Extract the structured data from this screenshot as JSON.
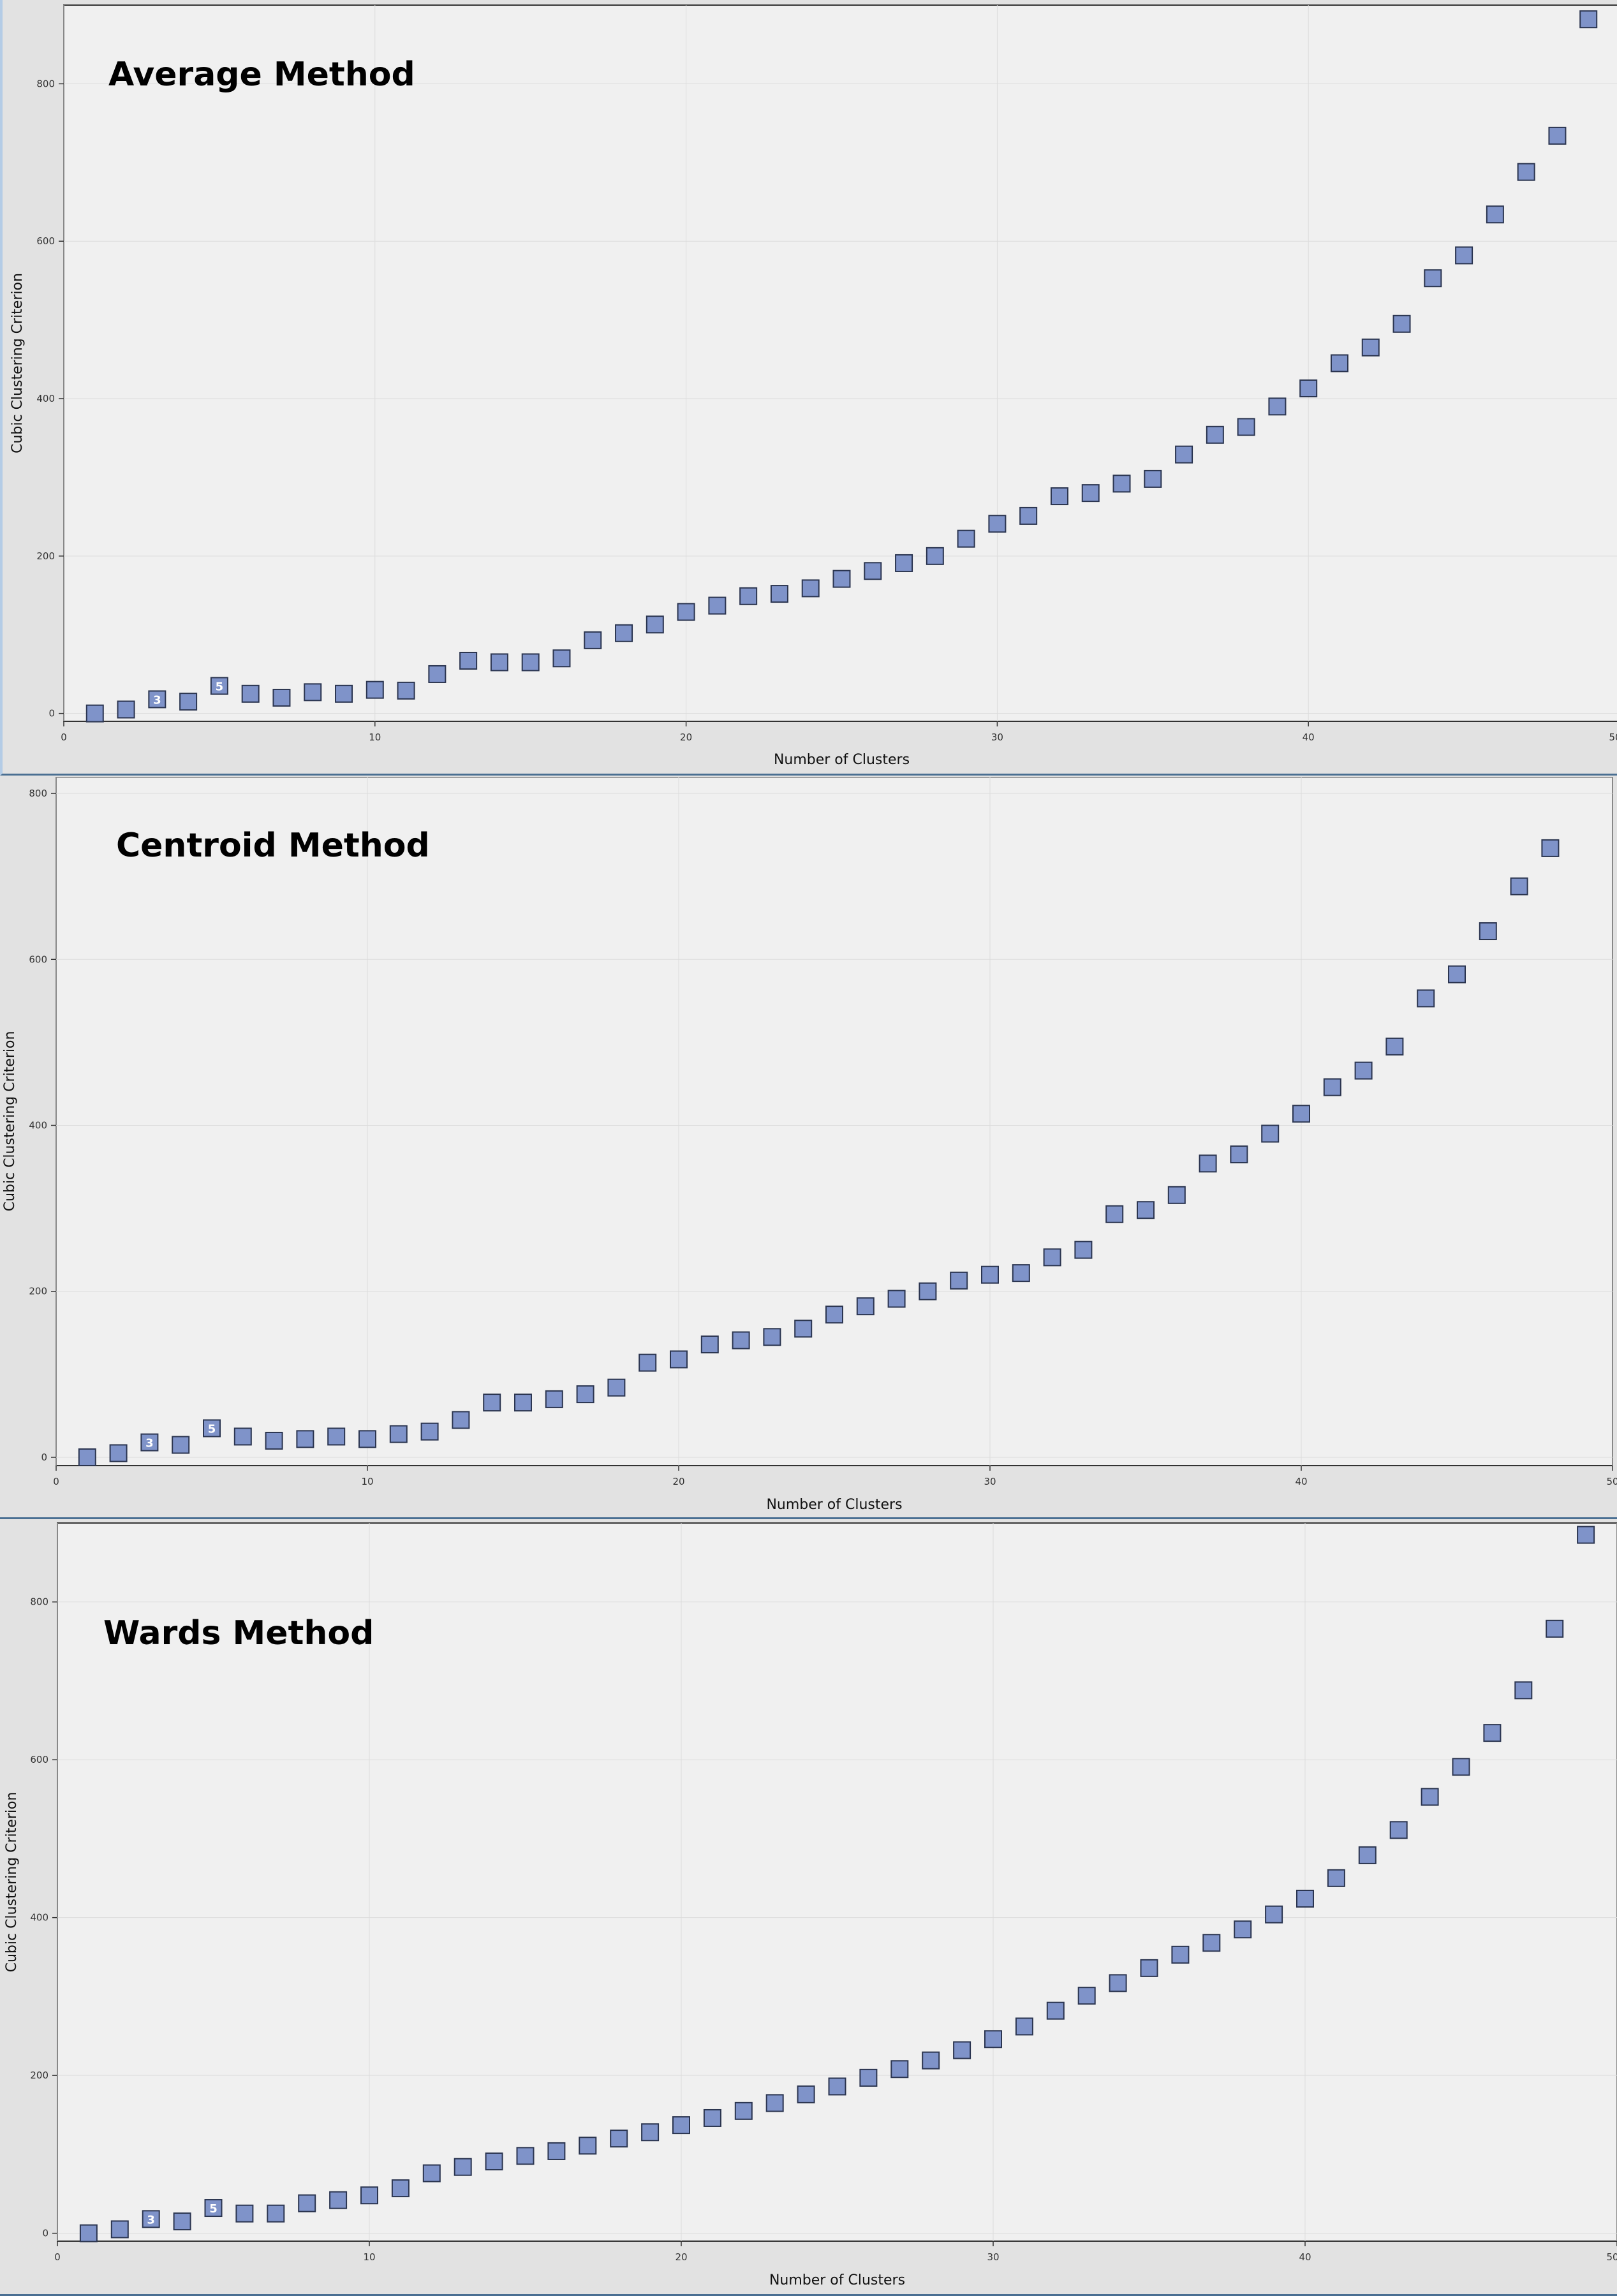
{
  "colors": {
    "panel_bg": "#e2e2e2",
    "plot_bg": "#f0f0f0",
    "grid": "#dcdcdc",
    "marker_fill": "#7f93c9",
    "marker_stroke": "#2b3550",
    "axis": "#333333"
  },
  "chart_data": [
    {
      "type": "scatter",
      "title": "Average Method",
      "xlabel": "Number of Clusters",
      "ylabel": "Cubic Clustering Criterion",
      "xlim": [
        0,
        50
      ],
      "ylim": [
        -10,
        900
      ],
      "xticks": [
        0,
        10,
        20,
        30,
        40,
        50
      ],
      "yticks": [
        0,
        200,
        400,
        600,
        800
      ],
      "grid": true,
      "marker": "square",
      "labeled_points": {
        "3": "3",
        "5": "5"
      },
      "x": [
        1,
        2,
        3,
        4,
        5,
        6,
        7,
        8,
        9,
        10,
        11,
        12,
        13,
        14,
        15,
        16,
        17,
        18,
        19,
        20,
        21,
        22,
        23,
        24,
        25,
        26,
        27,
        28,
        29,
        30,
        31,
        32,
        33,
        34,
        35,
        36,
        37,
        38,
        39,
        40,
        41,
        42,
        43,
        44,
        45,
        46,
        47,
        48,
        49
      ],
      "y": [
        0,
        5,
        18,
        15,
        35,
        25,
        20,
        27,
        25,
        30,
        29,
        50,
        67,
        65,
        65,
        70,
        93,
        102,
        113,
        129,
        137,
        149,
        152,
        159,
        171,
        181,
        191,
        200,
        222,
        241,
        251,
        276,
        280,
        292,
        298,
        329,
        354,
        364,
        390,
        413,
        445,
        465,
        495,
        553,
        582,
        634,
        688,
        734,
        882
      ]
    },
    {
      "type": "scatter",
      "title": "Centroid Method",
      "xlabel": "Number of Clusters",
      "ylabel": "Cubic Clustering Criterion",
      "xlim": [
        0,
        50
      ],
      "ylim": [
        -10,
        820
      ],
      "xticks": [
        0,
        10,
        20,
        30,
        40,
        50
      ],
      "yticks": [
        0,
        200,
        400,
        600,
        800
      ],
      "grid": true,
      "marker": "square",
      "labeled_points": {
        "3": "3",
        "5": "5"
      },
      "x": [
        1,
        2,
        3,
        4,
        5,
        6,
        7,
        8,
        9,
        10,
        11,
        12,
        13,
        14,
        15,
        16,
        17,
        18,
        19,
        20,
        21,
        22,
        23,
        24,
        25,
        26,
        27,
        28,
        29,
        30,
        31,
        32,
        33,
        34,
        35,
        36,
        37,
        38,
        39,
        40,
        41,
        42,
        43,
        44,
        45,
        46,
        47,
        48
      ],
      "y": [
        0,
        5,
        18,
        15,
        35,
        25,
        20,
        22,
        25,
        22,
        28,
        31,
        45,
        66,
        66,
        70,
        76,
        84,
        114,
        118,
        136,
        141,
        145,
        155,
        172,
        182,
        191,
        200,
        213,
        220,
        222,
        241,
        250,
        293,
        298,
        316,
        354,
        365,
        390,
        414,
        446,
        466,
        495,
        553,
        582,
        634,
        688,
        734
      ]
    },
    {
      "type": "scatter",
      "title": "Wards Method",
      "xlabel": "Number of Clusters",
      "ylabel": "Cubic Clustering Criterion",
      "xlim": [
        0,
        50
      ],
      "ylim": [
        -10,
        900
      ],
      "xticks": [
        0,
        10,
        20,
        30,
        40,
        50
      ],
      "yticks": [
        0,
        200,
        400,
        600,
        800
      ],
      "grid": true,
      "marker": "square",
      "labeled_points": {
        "3": "3",
        "5": "5"
      },
      "x": [
        1,
        2,
        3,
        4,
        5,
        6,
        7,
        8,
        9,
        10,
        11,
        12,
        13,
        14,
        15,
        16,
        17,
        18,
        19,
        20,
        21,
        22,
        23,
        24,
        25,
        26,
        27,
        28,
        29,
        30,
        31,
        32,
        33,
        34,
        35,
        36,
        37,
        38,
        39,
        40,
        41,
        42,
        43,
        44,
        45,
        46,
        47,
        48,
        49
      ],
      "y": [
        0,
        5,
        18,
        15,
        32,
        25,
        25,
        38,
        42,
        48,
        57,
        76,
        84,
        91,
        98,
        104,
        111,
        120,
        128,
        137,
        146,
        155,
        165,
        176,
        186,
        197,
        208,
        219,
        232,
        246,
        262,
        282,
        301,
        317,
        336,
        353,
        368,
        385,
        404,
        424,
        450,
        479,
        511,
        553,
        591,
        634,
        688,
        766,
        885
      ]
    }
  ]
}
